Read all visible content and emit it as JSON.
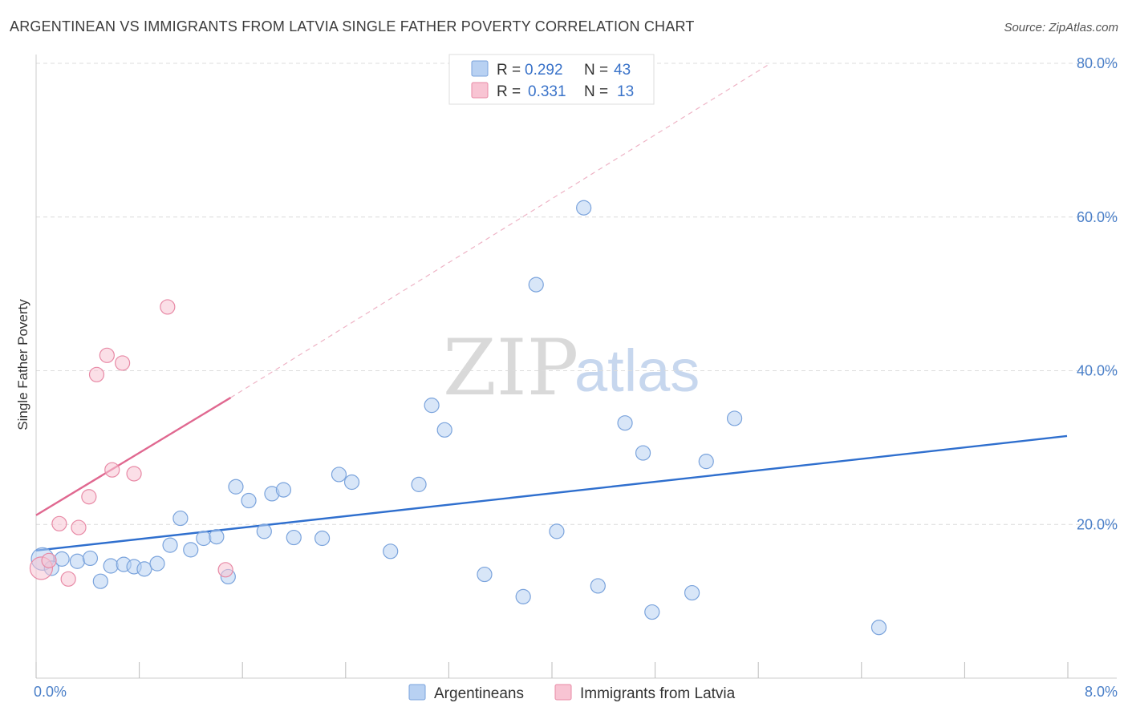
{
  "header": {
    "title": "ARGENTINEAN VS IMMIGRANTS FROM LATVIA SINGLE FATHER POVERTY CORRELATION CHART",
    "source": "Source: ZipAtlas.com"
  },
  "watermark": {
    "zip": "ZIP",
    "atlas": "atlas"
  },
  "colors": {
    "blue_fill": "#b8d1f2",
    "blue_stroke": "#7aa3dc",
    "blue_line": "#2f6fce",
    "pink_fill": "#f8c4d3",
    "pink_stroke": "#e88aa6",
    "pink_line": "#e06890",
    "axis_text": "#4a7fc8"
  },
  "legend": {
    "rows": [
      {
        "r_label": "R =",
        "r_value": "0.292",
        "n_label": "N =",
        "n_value": "43",
        "color": "blue"
      },
      {
        "r_label": "R =",
        "r_value": "0.331",
        "n_label": "N =",
        "n_value": "13",
        "color": "pink"
      }
    ]
  },
  "bottom_legend": {
    "items": [
      {
        "label": "Argentineans",
        "color": "blue"
      },
      {
        "label": "Immigrants from Latvia",
        "color": "pink"
      }
    ]
  },
  "chart_data": {
    "type": "scatter",
    "title": "ARGENTINEAN VS IMMIGRANTS FROM LATVIA SINGLE FATHER POVERTY CORRELATION CHART",
    "xlabel": "",
    "ylabel": "Single Father Poverty",
    "xlim": [
      0,
      8
    ],
    "ylim": [
      0,
      80
    ],
    "x_tick_labels": [
      {
        "value": 0,
        "label": "0.0%"
      },
      {
        "value": 8,
        "label": "8.0%"
      }
    ],
    "y_tick_labels": [
      {
        "value": 20,
        "label": "20.0%"
      },
      {
        "value": 40,
        "label": "40.0%"
      },
      {
        "value": 60,
        "label": "60.0%"
      },
      {
        "value": 80,
        "label": "80.0%"
      }
    ],
    "grid": true,
    "legend_position": "top-center",
    "series": [
      {
        "name": "Argentineans",
        "color": "blue",
        "points": [
          [
            0.05,
            15.5,
            14
          ],
          [
            0.12,
            14.3,
            9
          ],
          [
            0.2,
            15.5,
            9
          ],
          [
            0.32,
            15.2,
            9
          ],
          [
            0.42,
            15.6,
            9
          ],
          [
            0.5,
            12.6,
            9
          ],
          [
            0.58,
            14.6,
            9
          ],
          [
            0.68,
            14.8,
            9
          ],
          [
            0.76,
            14.5,
            9
          ],
          [
            0.84,
            14.2,
            9
          ],
          [
            0.94,
            14.9,
            9
          ],
          [
            1.04,
            17.3,
            9
          ],
          [
            1.12,
            20.8,
            9
          ],
          [
            1.2,
            16.7,
            9
          ],
          [
            1.3,
            18.2,
            9
          ],
          [
            1.4,
            18.4,
            9
          ],
          [
            1.49,
            13.2,
            9
          ],
          [
            1.55,
            24.9,
            9
          ],
          [
            1.65,
            23.1,
            9
          ],
          [
            1.77,
            19.1,
            9
          ],
          [
            1.83,
            24.0,
            9
          ],
          [
            1.92,
            24.5,
            9
          ],
          [
            2.0,
            18.3,
            9
          ],
          [
            2.22,
            18.2,
            9
          ],
          [
            2.35,
            26.5,
            9
          ],
          [
            2.45,
            25.5,
            9
          ],
          [
            2.75,
            16.5,
            9
          ],
          [
            2.97,
            25.2,
            9
          ],
          [
            3.07,
            35.5,
            9
          ],
          [
            3.17,
            32.3,
            9
          ],
          [
            3.48,
            13.5,
            9
          ],
          [
            3.78,
            10.6,
            9
          ],
          [
            3.88,
            51.2,
            9
          ],
          [
            4.04,
            19.1,
            9
          ],
          [
            4.25,
            61.2,
            9
          ],
          [
            4.36,
            12.0,
            9
          ],
          [
            4.57,
            33.2,
            9
          ],
          [
            4.71,
            29.3,
            9
          ],
          [
            4.78,
            8.6,
            9
          ],
          [
            5.09,
            11.1,
            9
          ],
          [
            5.2,
            28.2,
            9
          ],
          [
            5.42,
            33.8,
            9
          ],
          [
            6.54,
            6.6,
            9
          ]
        ],
        "trend": {
          "x": [
            0.0,
            8.0
          ],
          "y": [
            16.6,
            31.5
          ],
          "style": "solid"
        }
      },
      {
        "name": "Immigrants from Latvia",
        "color": "pink",
        "points": [
          [
            0.04,
            14.3,
            14
          ],
          [
            0.1,
            15.3,
            9
          ],
          [
            0.25,
            12.9,
            9
          ],
          [
            0.18,
            20.1,
            9
          ],
          [
            0.33,
            19.6,
            9
          ],
          [
            0.41,
            23.6,
            9
          ],
          [
            0.47,
            39.5,
            9
          ],
          [
            0.55,
            42.0,
            9
          ],
          [
            0.59,
            27.1,
            9
          ],
          [
            0.67,
            41.0,
            9
          ],
          [
            0.76,
            26.6,
            9
          ],
          [
            1.02,
            48.3,
            9
          ],
          [
            1.47,
            14.1,
            9
          ]
        ],
        "trend": {
          "x": [
            0.0,
            1.51
          ],
          "y": [
            21.2,
            36.5
          ],
          "style": "solid"
        },
        "trend_extension": {
          "x": [
            1.51,
            5.7
          ],
          "y": [
            36.5,
            80.0
          ],
          "style": "dashed"
        }
      }
    ]
  }
}
